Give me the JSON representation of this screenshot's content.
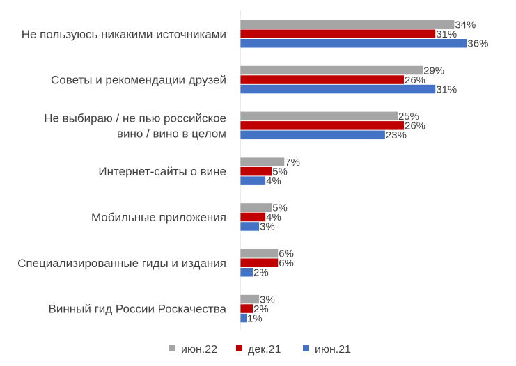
{
  "chart_data": {
    "type": "bar",
    "orientation": "horizontal",
    "title": "",
    "xlabel": "",
    "ylabel": "",
    "xlim": [
      0,
      40
    ],
    "grid": false,
    "legend_position": "bottom",
    "categories": [
      [
        "Не пользуюсь никакими источниками"
      ],
      [
        "Советы и рекомендации друзей"
      ],
      [
        "Не выбираю / не пью российское",
        "вино / вино в целом"
      ],
      [
        "Интернет-сайты о вине"
      ],
      [
        "Мобильные приложения"
      ],
      [
        "Специализированные гиды и издания"
      ],
      [
        "Винный гид России Роскачества"
      ]
    ],
    "series": [
      {
        "name": "июн.22",
        "color": "#a5a5a5",
        "values": [
          34,
          29,
          25,
          7,
          5,
          6,
          3
        ],
        "labels": [
          "34%",
          "29%",
          "25%",
          "7%",
          "5%",
          "6%",
          "3%"
        ]
      },
      {
        "name": "дек.21",
        "color": "#c00000",
        "values": [
          31,
          26,
          26,
          5,
          4,
          6,
          2
        ],
        "labels": [
          "31%",
          "26%",
          "26%",
          "5%",
          "4%",
          "6%",
          "2%"
        ]
      },
      {
        "name": "июн.21",
        "color": "#4472c4",
        "values": [
          36,
          31,
          23,
          4,
          3,
          2,
          1
        ],
        "labels": [
          "36%",
          "31%",
          "23%",
          "4%",
          "3%",
          "2%",
          "1%"
        ]
      }
    ]
  }
}
